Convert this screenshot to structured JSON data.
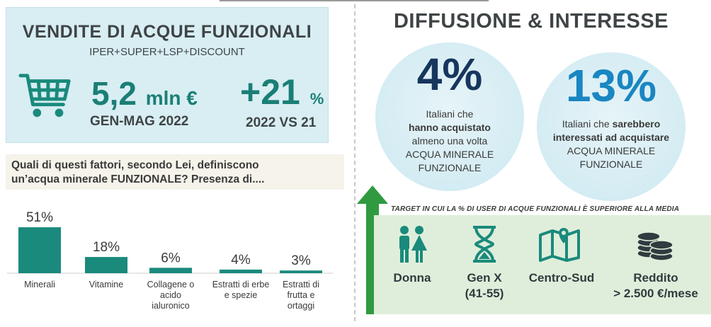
{
  "sales": {
    "title": "VENDITE DI ACQUE FUNZIONALI",
    "subtitle": "IPER+SUPER+LSP+DISCOUNT",
    "value": "5,2",
    "value_unit": "mln €",
    "period": "GEN-MAG 2022",
    "growth": "+21",
    "growth_unit": "%",
    "growth_compare": "2022 VS 21",
    "icon": "shopping-cart-icon"
  },
  "question": {
    "line1": "Quali di questi fattori, secondo Lei, definiscono",
    "line2": "un’acqua minerale FUNZIONALE? Presenza di...."
  },
  "chart_data": {
    "type": "bar",
    "categories": [
      [
        "Minerali"
      ],
      [
        "Vitamine"
      ],
      [
        "Collagene o",
        "acido",
        "ialuronico"
      ],
      [
        "Estratti di erbe",
        "e spezie"
      ],
      [
        "Estratti di",
        "frutta e",
        "ortaggi"
      ]
    ],
    "values": [
      51,
      18,
      6,
      4,
      3
    ],
    "value_labels": [
      "51%",
      "18%",
      "6%",
      "4%",
      "3%"
    ],
    "unit": "%",
    "title": "",
    "xlabel": "",
    "ylabel": "",
    "ylim": [
      0,
      55
    ],
    "grid": false,
    "bar_color": "#1a8a7c"
  },
  "right": {
    "title": "DIFFUSIONE & INTERESSE",
    "stat1": {
      "value": "4%",
      "line1": "Italiani che",
      "line2": "hanno acquistato",
      "line3": "almeno una volta",
      "line4": "ACQUA MINERALE",
      "line5": "FUNZIONALE"
    },
    "stat2": {
      "value": "13%",
      "line1_plain": "Italiani che ",
      "line1_bold": "sarebbero",
      "line2": "interessati ad acquistare",
      "line3": "ACQUA MINERALE",
      "line4": "FUNZIONALE"
    },
    "target_note": "TARGET IN CUI LA % DI USER DI ACQUE FUNZIONALI È SUPERIORE ALLA MEDIA",
    "targets": [
      {
        "label1": "Donna",
        "label2": "",
        "icon": "people-icon"
      },
      {
        "label1": "Gen X",
        "label2": "(41-55)",
        "icon": "hourglass-icon"
      },
      {
        "label1": "Centro-Sud",
        "label2": "",
        "icon": "map-icon"
      },
      {
        "label1": "Reddito",
        "label2": "> 2.500 €/mese",
        "icon": "coins-icon"
      }
    ]
  },
  "colors": {
    "teal": "#1a8a7c",
    "dark_navy": "#17365d",
    "blue": "#1a86c2",
    "light_blue_panel": "#d8eef3",
    "light_green_panel": "#dfeeda",
    "arrow_green": "#2f9a3f"
  }
}
